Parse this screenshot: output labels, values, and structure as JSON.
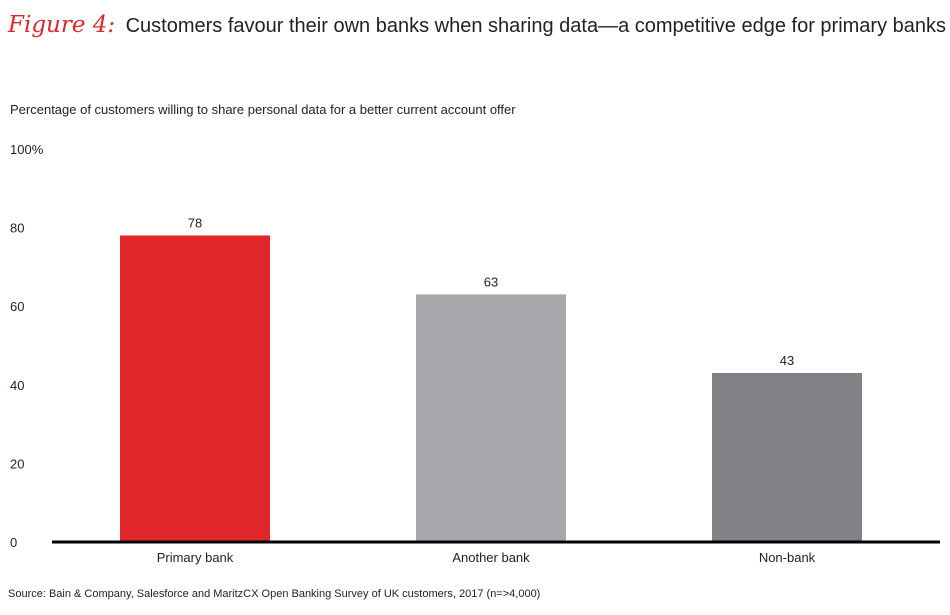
{
  "figure": {
    "label": "Figure 4:",
    "title": "Customers favour their own banks when sharing data—a competitive edge for primary banks"
  },
  "source": "Source: Bain & Company, Salesforce and MaritzCX Open Banking Survey of UK customers, 2017 (n=>4,000)",
  "colors": {
    "accent": "#e2272b",
    "bar_light_gray": "#a7a8ab",
    "bar_dark_gray": "#808285",
    "text": "#231f20"
  },
  "chart_data": {
    "type": "bar",
    "title": "Percentage of customers willing to share personal data for a better current account offer",
    "categories": [
      "Primary bank",
      "Another bank",
      "Non-bank"
    ],
    "values": [
      78,
      63,
      43
    ],
    "data_labels": [
      "78",
      "63",
      "43"
    ],
    "bar_colors": [
      "#e2272b",
      "#a7a8ab",
      "#808285"
    ],
    "yticks": [
      "0",
      "20",
      "40",
      "60",
      "80",
      "100%"
    ],
    "ylim": [
      0,
      100
    ],
    "grid": false,
    "legend": "none"
  }
}
